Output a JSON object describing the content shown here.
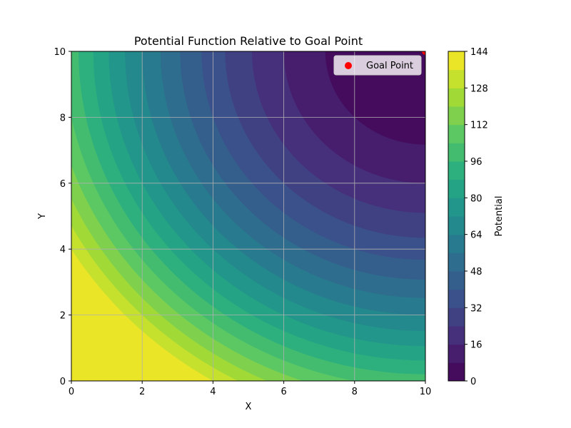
{
  "chart_data": {
    "type": "contour",
    "title": "Potential Function Relative to Goal Point",
    "xlabel": "X",
    "ylabel": "Y",
    "xlim": [
      0,
      10
    ],
    "ylim": [
      0,
      10
    ],
    "x_ticks": [
      0,
      2,
      4,
      6,
      8,
      10
    ],
    "y_ticks": [
      0,
      2,
      4,
      6,
      8,
      10
    ],
    "grid": true,
    "function": "(x - 10)^2 + (y - 10)^2",
    "goal_point": {
      "x": 10,
      "y": 10,
      "label": "Goal Point",
      "color": "#ff0000"
    },
    "legend": {
      "position": "top-right",
      "entries": [
        "Goal Point"
      ]
    },
    "colorbar": {
      "label": "Potential",
      "min": 0,
      "max": 144,
      "levels": [
        0,
        8,
        16,
        24,
        32,
        40,
        48,
        56,
        64,
        72,
        80,
        88,
        96,
        104,
        112,
        120,
        128,
        136,
        144
      ],
      "ticks": [
        0,
        16,
        32,
        48,
        64,
        80,
        96,
        112,
        128,
        144
      ]
    }
  }
}
